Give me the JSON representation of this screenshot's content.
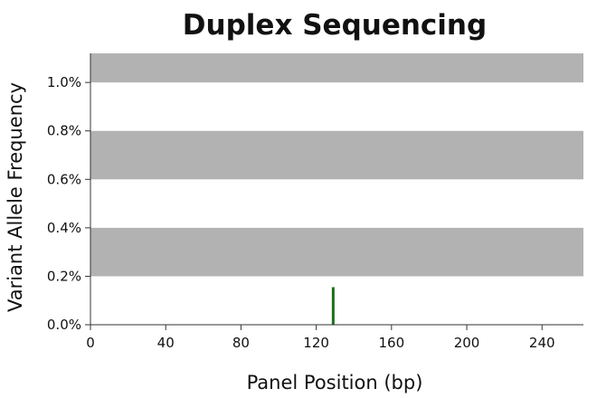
{
  "colors": {
    "band": "#b2b2b2",
    "variant": "#1a6f1a",
    "axis": "#333333",
    "text": "#111111"
  },
  "chart_data": {
    "type": "bar",
    "title": "Duplex Sequencing",
    "xlabel": "Panel Position (bp)",
    "ylabel": "Variant Allele Frequency",
    "xlim": [
      0,
      262
    ],
    "ylim": [
      0,
      1.12
    ],
    "x_ticks": [
      0,
      40,
      80,
      120,
      160,
      200,
      240
    ],
    "x_tick_labels": [
      "0",
      "40",
      "80",
      "120",
      "160",
      "200",
      "240"
    ],
    "y_ticks": [
      0,
      0.2,
      0.4,
      0.6,
      0.8,
      1.0
    ],
    "y_tick_labels": [
      "0.0%",
      "0.2%",
      "0.4%",
      "0.6%",
      "0.8%",
      "1.0%"
    ],
    "y_units": "percent",
    "background_bands": [
      {
        "y_from": 0.2,
        "y_to": 0.4
      },
      {
        "y_from": 0.6,
        "y_to": 0.8
      },
      {
        "y_from": 1.0,
        "y_to": 1.12
      }
    ],
    "variants": [
      {
        "position": 129,
        "frequency": 0.155
      }
    ],
    "grid": false,
    "legend": "none"
  }
}
